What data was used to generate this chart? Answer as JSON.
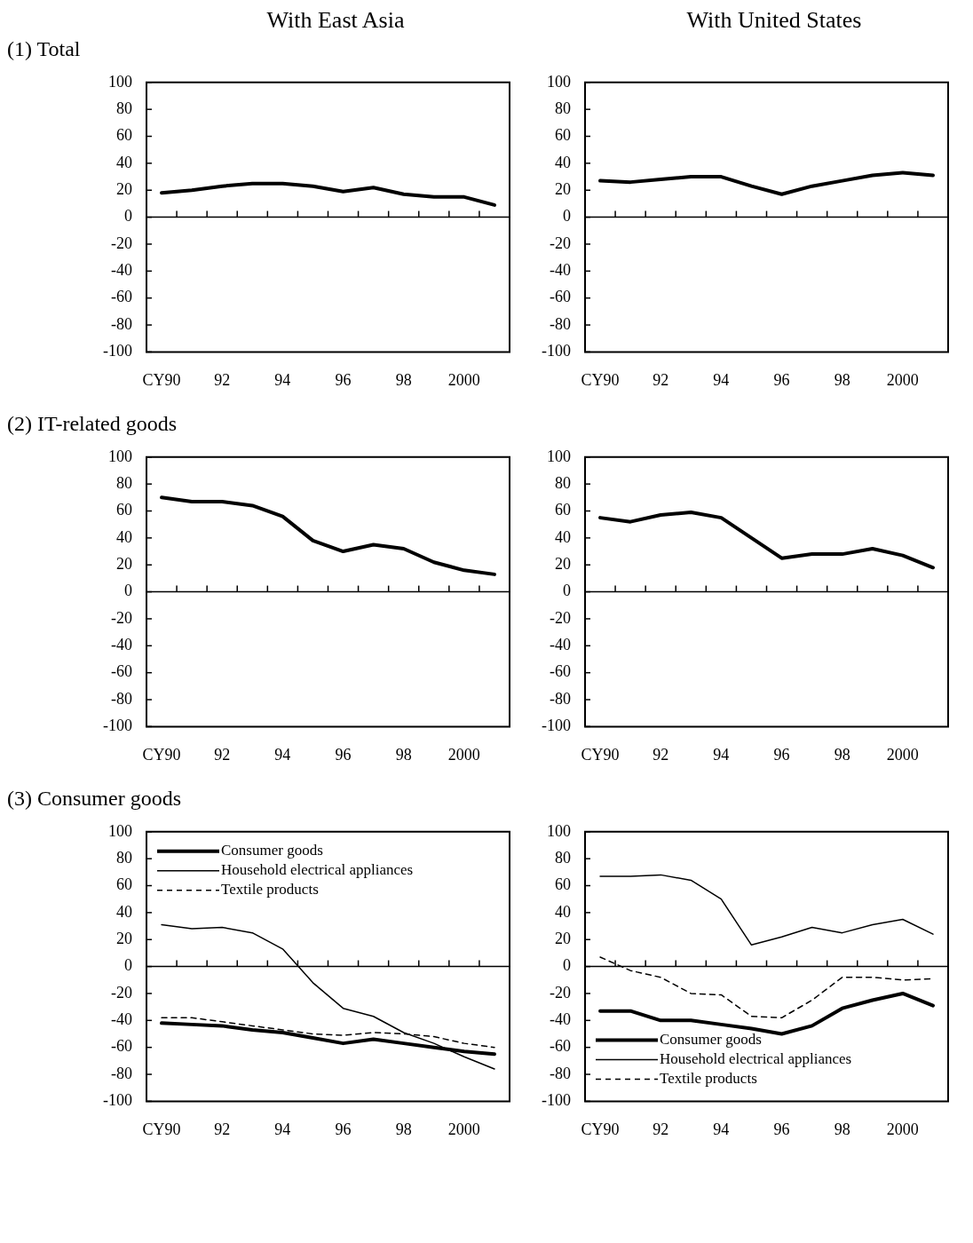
{
  "chart_data": [
    {
      "type": "line",
      "title": "With East Asia",
      "subtitle": "(1) Total",
      "categories": [
        "CY90",
        null,
        "92",
        null,
        "94",
        null,
        "96",
        null,
        "98",
        null,
        "2000",
        null
      ],
      "ylim": [
        -100,
        100
      ],
      "yticks": [
        -100,
        -80,
        -60,
        -40,
        -20,
        0,
        20,
        40,
        60,
        80,
        100
      ],
      "series": [
        {
          "color": "#000000",
          "line_style": "solid",
          "values": [
            18,
            20,
            23,
            25,
            25,
            23,
            19,
            22,
            17,
            15,
            15,
            9
          ]
        }
      ]
    },
    {
      "type": "line",
      "title": "With United States",
      "categories": [
        "CY90",
        null,
        "92",
        null,
        "94",
        null,
        "96",
        null,
        "98",
        null,
        "2000",
        null
      ],
      "ylim": [
        -100,
        100
      ],
      "yticks": [
        -100,
        -80,
        -60,
        -40,
        -20,
        0,
        20,
        40,
        60,
        80,
        100
      ],
      "series": [
        {
          "color": "#000000",
          "line_style": "solid",
          "values": [
            27,
            26,
            28,
            30,
            30,
            23,
            17,
            23,
            27,
            31,
            33,
            31
          ]
        }
      ]
    },
    {
      "type": "line",
      "subtitle": "(2) IT-related goods",
      "categories": [
        "CY90",
        null,
        "92",
        null,
        "94",
        null,
        "96",
        null,
        "98",
        null,
        "2000",
        null
      ],
      "ylim": [
        -100,
        100
      ],
      "yticks": [
        -100,
        -80,
        -60,
        -40,
        -20,
        0,
        20,
        40,
        60,
        80,
        100
      ],
      "series": [
        {
          "color": "#000000",
          "line_style": "solid",
          "values": [
            70,
            67,
            67,
            64,
            56,
            38,
            30,
            35,
            32,
            22,
            16,
            13
          ]
        }
      ]
    },
    {
      "type": "line",
      "categories": [
        "CY90",
        null,
        "92",
        null,
        "94",
        null,
        "96",
        null,
        "98",
        null,
        "2000",
        null
      ],
      "ylim": [
        -100,
        100
      ],
      "yticks": [
        -100,
        -80,
        -60,
        -40,
        -20,
        0,
        20,
        40,
        60,
        80,
        100
      ],
      "series": [
        {
          "color": "#000000",
          "line_style": "solid",
          "values": [
            55,
            52,
            57,
            59,
            55,
            40,
            25,
            28,
            28,
            32,
            27,
            18
          ]
        }
      ]
    },
    {
      "type": "line",
      "subtitle": "(3) Consumer goods",
      "categories": [
        "CY90",
        null,
        "92",
        null,
        "94",
        null,
        "96",
        null,
        "98",
        null,
        "2000",
        null
      ],
      "ylim": [
        -100,
        100
      ],
      "yticks": [
        -100,
        -80,
        -60,
        -40,
        -20,
        0,
        20,
        40,
        60,
        80,
        100
      ],
      "legend": "top left",
      "series": [
        {
          "name": "Consumer goods",
          "color": "#000000",
          "line_style": "solid",
          "values": [
            -42,
            -43,
            -44,
            -47,
            -49,
            -53,
            -57,
            -54,
            -57,
            -60,
            -63,
            -65
          ]
        },
        {
          "name": "Household electrical appliances",
          "color": "#000000",
          "line_style": "solid",
          "values": [
            31,
            28,
            29,
            25,
            13,
            -12,
            -31,
            -37,
            -49,
            -57,
            -67,
            -76
          ]
        },
        {
          "name": "Textile products",
          "color": "#000000",
          "line_style": "dashed",
          "values": [
            -38,
            -38,
            -41,
            -44,
            -47,
            -50,
            -51,
            -49,
            -50,
            -52,
            -57,
            -60
          ]
        }
      ]
    },
    {
      "type": "line",
      "categories": [
        "CY90",
        null,
        "92",
        null,
        "94",
        null,
        "96",
        null,
        "98",
        null,
        "2000",
        null
      ],
      "ylim": [
        -100,
        100
      ],
      "yticks": [
        -100,
        -80,
        -60,
        -40,
        -20,
        0,
        20,
        40,
        60,
        80,
        100
      ],
      "legend": "bottom left",
      "series": [
        {
          "name": "Consumer goods",
          "color": "#000000",
          "line_style": "solid",
          "values": [
            -33,
            -33,
            -40,
            -40,
            -43,
            -46,
            -50,
            -44,
            -31,
            -25,
            -20,
            -29
          ]
        },
        {
          "name": "Household electrical appliances",
          "color": "#000000",
          "line_style": "solid",
          "values": [
            67,
            67,
            68,
            64,
            50,
            16,
            22,
            29,
            25,
            31,
            35,
            24
          ]
        },
        {
          "name": "Textile products",
          "color": "#000000",
          "line_style": "dashed",
          "values": [
            7,
            -3,
            -8,
            -20,
            -21,
            -37,
            -38,
            -25,
            -8,
            -8,
            -10,
            -9
          ]
        }
      ]
    }
  ]
}
